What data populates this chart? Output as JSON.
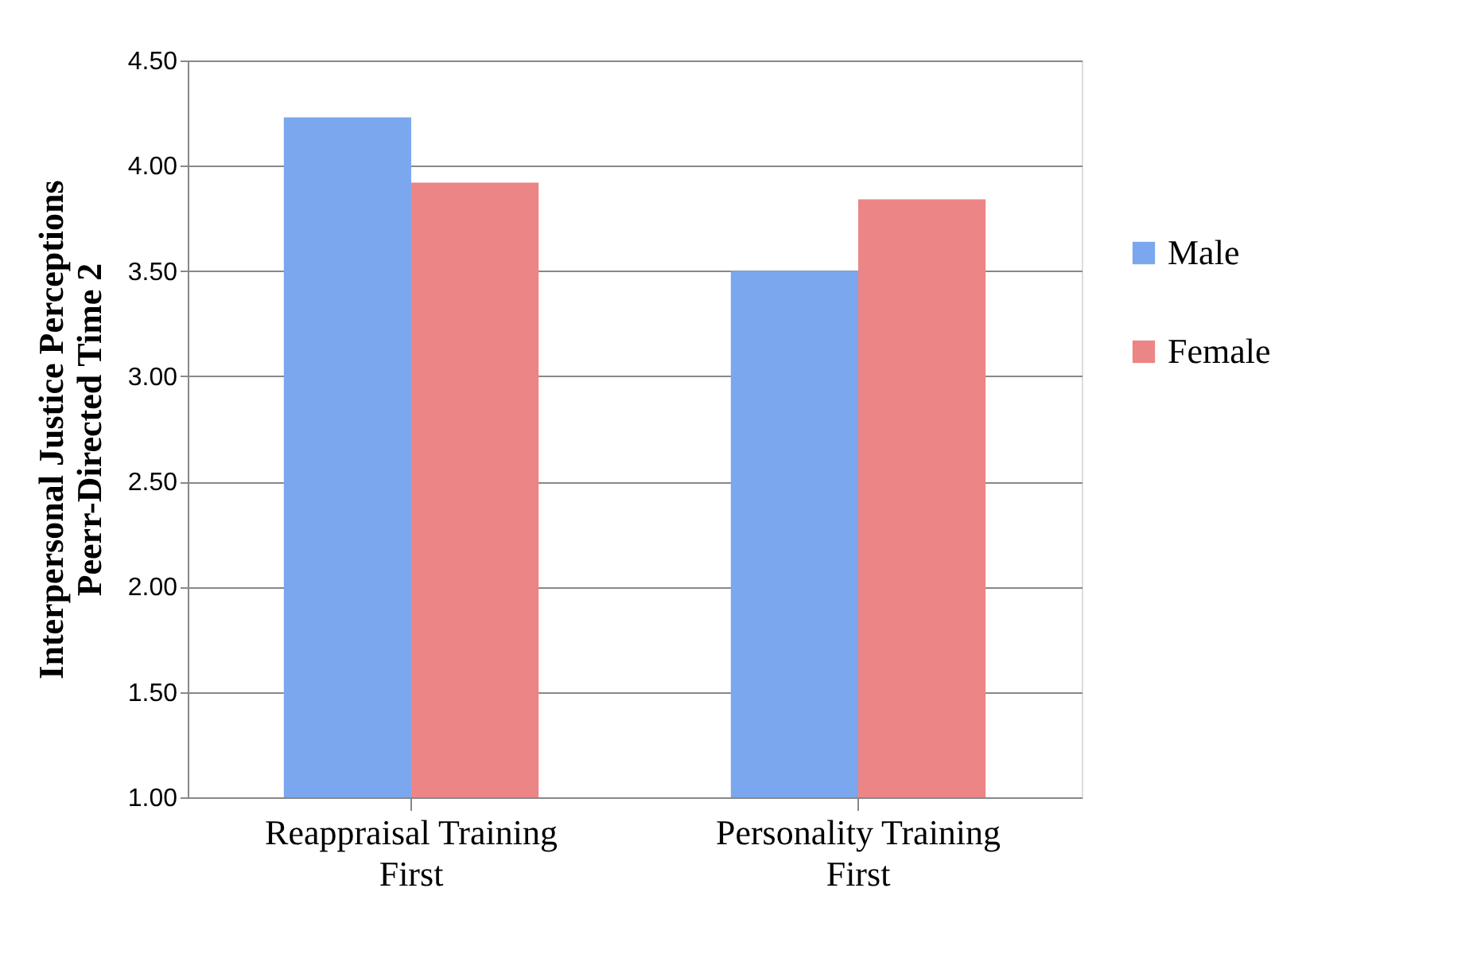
{
  "chart_data": {
    "type": "bar",
    "ylabel": "Interpersonal Justice Perceptions\nPeerr-Directed Time 2",
    "categories": [
      "Reappraisal Training First",
      "Personality Training First"
    ],
    "series": [
      {
        "name": "Male",
        "color": "#7ba7ef",
        "values": [
          4.23,
          3.5
        ]
      },
      {
        "name": "Female",
        "color": "#ec8585",
        "values": [
          3.92,
          3.84
        ]
      }
    ],
    "ylim": [
      1.0,
      4.5
    ],
    "yticks": [
      {
        "value": 1.0,
        "label": "1.00"
      },
      {
        "value": 1.5,
        "label": "1.50"
      },
      {
        "value": 2.0,
        "label": "2.00"
      },
      {
        "value": 2.5,
        "label": "2.50"
      },
      {
        "value": 3.0,
        "label": "3.00"
      },
      {
        "value": 3.5,
        "label": "3.50"
      },
      {
        "value": 4.0,
        "label": "4.00"
      },
      {
        "value": 4.5,
        "label": "4.50"
      }
    ],
    "grid": "y",
    "legend": "right"
  }
}
